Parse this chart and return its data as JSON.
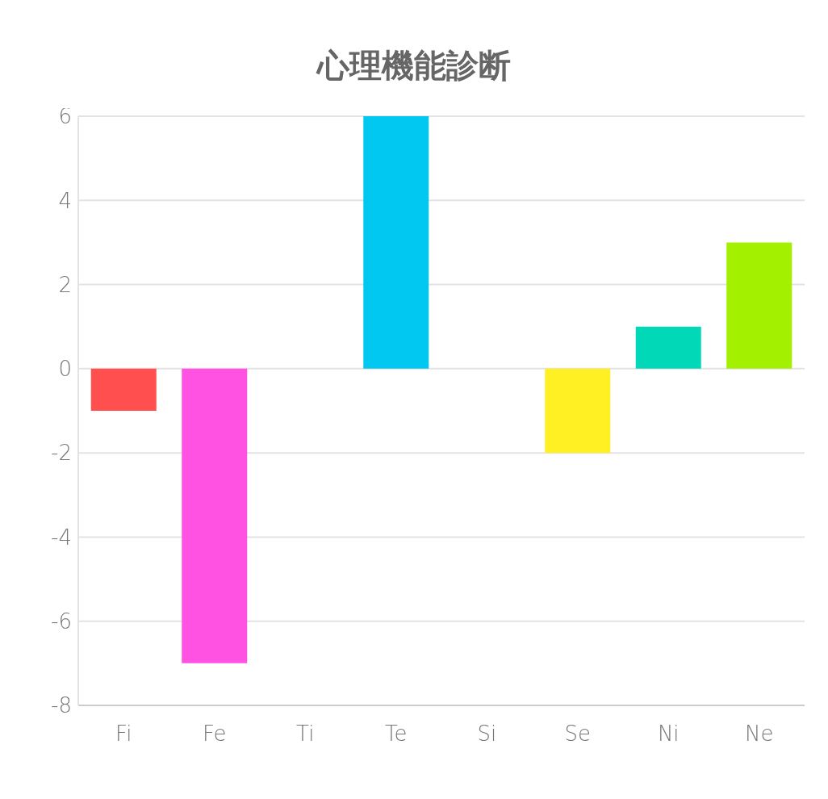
{
  "chart_data": {
    "type": "bar",
    "title": "心理機能診断",
    "categories": [
      "Fi",
      "Fe",
      "Ti",
      "Te",
      "Si",
      "Se",
      "Ni",
      "Ne"
    ],
    "values": [
      -1,
      -7,
      0,
      6,
      0,
      -2,
      1,
      3
    ],
    "colors": [
      "#ff4f4f",
      "#ff52e3",
      null,
      "#00c8f0",
      null,
      "#fff024",
      "#00d8b8",
      "#a3f000"
    ],
    "ylim": [
      -8,
      6
    ],
    "yticks": [
      -8,
      -6,
      -4,
      -2,
      0,
      2,
      4,
      6
    ],
    "grid": "y",
    "legend": false
  }
}
